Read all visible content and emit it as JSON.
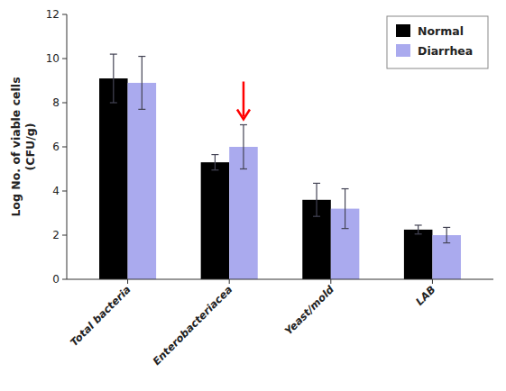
{
  "chart_data": {
    "type": "bar",
    "ylabel": "Log No. of viable cells\n(CFU/g)",
    "categories": [
      "Total bacteria",
      "Enterobacteriacea",
      "Yeast/mold",
      "LAB"
    ],
    "series": [
      {
        "name": "Normal",
        "color": "#000000",
        "values": [
          9.1,
          5.3,
          3.6,
          2.25
        ],
        "errors": [
          1.1,
          0.35,
          0.75,
          0.2
        ]
      },
      {
        "name": "Diarrhea",
        "color": "#aaaaee",
        "values": [
          8.9,
          6.0,
          3.2,
          2.0
        ],
        "errors": [
          1.2,
          1.0,
          0.9,
          0.35
        ]
      }
    ],
    "ylim": [
      0,
      12
    ],
    "yticks": [
      0,
      2,
      4,
      6,
      8,
      10,
      12
    ],
    "grid": false,
    "legend": "upper right",
    "annotations": [
      {
        "type": "arrow",
        "series": "Diarrhea",
        "category": "Enterobacteriacea",
        "color": "red"
      }
    ]
  }
}
